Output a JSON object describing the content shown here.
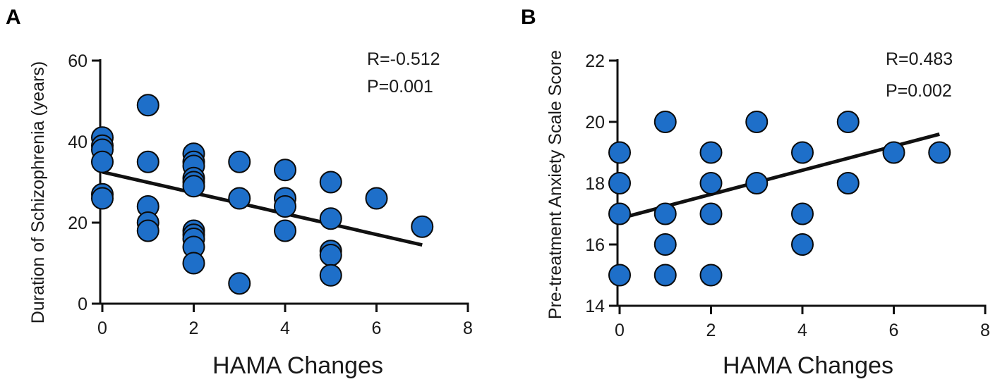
{
  "chart_data": [
    {
      "panel": "A",
      "type": "scatter",
      "title": "",
      "xlabel": "HAMA Changes",
      "ylabel": "Duration of Schizophrenia (years)",
      "xlim": [
        0,
        8
      ],
      "ylim": [
        0,
        60
      ],
      "xticks": [
        0,
        2,
        4,
        6,
        8
      ],
      "yticks": [
        0,
        20,
        40,
        60
      ],
      "x_tick_labels": [
        "0",
        "2",
        "4",
        "6",
        "8"
      ],
      "y_tick_labels": [
        "0",
        "20",
        "40",
        "60"
      ],
      "annotations": [
        "R=-0.512",
        "P=0.001"
      ],
      "grid": false,
      "marker_color": "#1e6fc9",
      "points": [
        {
          "x": 0,
          "y": 41
        },
        {
          "x": 0,
          "y": 39
        },
        {
          "x": 0,
          "y": 38
        },
        {
          "x": 0,
          "y": 35
        },
        {
          "x": 0,
          "y": 27
        },
        {
          "x": 0,
          "y": 26
        },
        {
          "x": 1,
          "y": 49
        },
        {
          "x": 1,
          "y": 35
        },
        {
          "x": 1,
          "y": 24
        },
        {
          "x": 1,
          "y": 20
        },
        {
          "x": 1,
          "y": 18
        },
        {
          "x": 2,
          "y": 37
        },
        {
          "x": 2,
          "y": 35
        },
        {
          "x": 2,
          "y": 34
        },
        {
          "x": 2,
          "y": 31
        },
        {
          "x": 2,
          "y": 30
        },
        {
          "x": 2,
          "y": 29
        },
        {
          "x": 2,
          "y": 18
        },
        {
          "x": 2,
          "y": 17
        },
        {
          "x": 2,
          "y": 16
        },
        {
          "x": 2,
          "y": 14
        },
        {
          "x": 2,
          "y": 10
        },
        {
          "x": 3,
          "y": 35
        },
        {
          "x": 3,
          "y": 26
        },
        {
          "x": 3,
          "y": 5
        },
        {
          "x": 4,
          "y": 33
        },
        {
          "x": 4,
          "y": 26
        },
        {
          "x": 4,
          "y": 24
        },
        {
          "x": 4,
          "y": 18
        },
        {
          "x": 5,
          "y": 30
        },
        {
          "x": 5,
          "y": 21
        },
        {
          "x": 5,
          "y": 13
        },
        {
          "x": 5,
          "y": 12
        },
        {
          "x": 5,
          "y": 7
        },
        {
          "x": 6,
          "y": 26
        },
        {
          "x": 7,
          "y": 19
        }
      ],
      "fit_line": {
        "x": [
          0,
          7
        ],
        "y": [
          32.5,
          14.5
        ]
      }
    },
    {
      "panel": "B",
      "type": "scatter",
      "title": "",
      "xlabel": "HAMA Changes",
      "ylabel": "Pre-treatment Anxiety Scale Score",
      "xlim": [
        0,
        8
      ],
      "ylim": [
        14,
        22
      ],
      "xticks": [
        0,
        2,
        4,
        6,
        8
      ],
      "yticks": [
        14,
        16,
        18,
        20,
        22
      ],
      "x_tick_labels": [
        "0",
        "2",
        "4",
        "6",
        "8"
      ],
      "y_tick_labels": [
        "14",
        "16",
        "18",
        "20",
        "22"
      ],
      "annotations": [
        "R=0.483",
        "P=0.002"
      ],
      "grid": false,
      "marker_color": "#1e6fc9",
      "points": [
        {
          "x": 0,
          "y": 19
        },
        {
          "x": 0,
          "y": 18
        },
        {
          "x": 0,
          "y": 17
        },
        {
          "x": 0,
          "y": 15
        },
        {
          "x": 1,
          "y": 20
        },
        {
          "x": 1,
          "y": 17
        },
        {
          "x": 1,
          "y": 16
        },
        {
          "x": 1,
          "y": 15
        },
        {
          "x": 2,
          "y": 19
        },
        {
          "x": 2,
          "y": 18
        },
        {
          "x": 2,
          "y": 17
        },
        {
          "x": 2,
          "y": 15
        },
        {
          "x": 3,
          "y": 20
        },
        {
          "x": 3,
          "y": 18
        },
        {
          "x": 4,
          "y": 19
        },
        {
          "x": 4,
          "y": 17
        },
        {
          "x": 4,
          "y": 16
        },
        {
          "x": 5,
          "y": 20
        },
        {
          "x": 5,
          "y": 18
        },
        {
          "x": 6,
          "y": 19
        },
        {
          "x": 7,
          "y": 19
        }
      ],
      "fit_line": {
        "x": [
          0,
          7
        ],
        "y": [
          16.85,
          19.6
        ]
      }
    }
  ]
}
